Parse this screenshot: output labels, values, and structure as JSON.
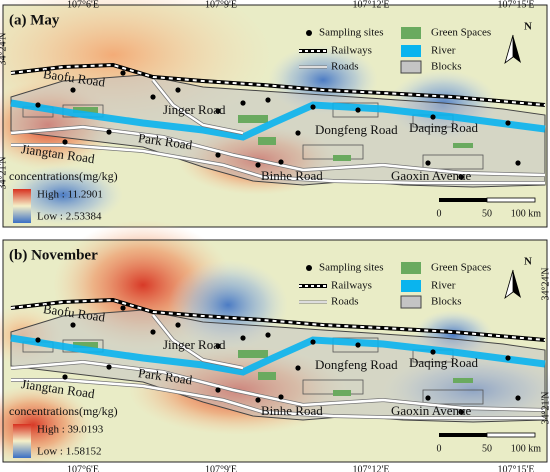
{
  "panels": [
    {
      "label": "(a) May",
      "lon_labels": [
        "107°6'E",
        "107°9'E",
        "107°12'E",
        "107°15'E"
      ],
      "lat_labels": [
        "34°24'N",
        "34°21'N"
      ],
      "legend": [
        "Sampling sites",
        "Railways",
        "Roads",
        "Green Spaces",
        "River",
        "Blocks"
      ],
      "roads": [
        "Baofu Road",
        "Jinger Road",
        "Park Road",
        "Jiangtan Road",
        "Dongfeng Road",
        "Daqing Road",
        "Binhe Road",
        "Gaoxin Avenue"
      ],
      "concentration_title": "concentrations(mg/kg)",
      "high": "High : 11.2901",
      "low": "Low : 2.53384",
      "scale": [
        "0",
        "50",
        "100 km"
      ],
      "north": "N"
    },
    {
      "label": "(b) November",
      "lon_labels": [
        "107°6'E",
        "107°9'E",
        "107°12'E",
        "107°15'E"
      ],
      "lat_labels": [
        "34°24'N",
        "34°21'N"
      ],
      "legend": [
        "Sampling sites",
        "Railways",
        "Roads",
        "Green Spaces",
        "River",
        "Blocks"
      ],
      "roads": [
        "Baofu Road",
        "Jinger Road",
        "Park Road",
        "Jiangtan Road",
        "Dongfeng Road",
        "Daqing Road",
        "Binhe Road",
        "Gaoxin Avenue"
      ],
      "concentration_title": "concentrations(mg/kg)",
      "high": "High : 39.0193",
      "low": "Low : 1.58152",
      "scale": [
        "0",
        "50",
        "100 km"
      ],
      "north": "N"
    }
  ]
}
